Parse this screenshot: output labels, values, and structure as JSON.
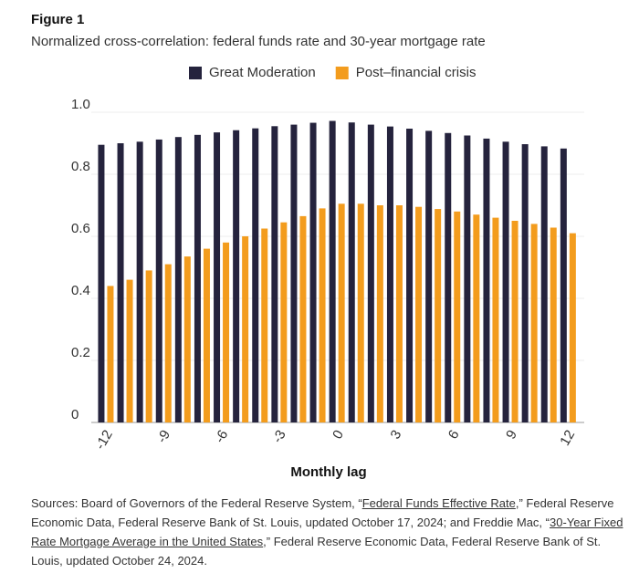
{
  "chart_data": {
    "type": "bar",
    "figure_label": "Figure 1",
    "title": "Normalized cross-correlation: federal funds rate and 30-year mortgage rate",
    "x_label": "Monthly lag",
    "categories": [
      "-12",
      null,
      null,
      "-9",
      null,
      null,
      "-6",
      null,
      null,
      "-3",
      null,
      null,
      "0",
      null,
      null,
      "3",
      null,
      null,
      "6",
      null,
      null,
      "9",
      null,
      null,
      "12"
    ],
    "series": [
      {
        "name": "Great Moderation",
        "color": "#25233d",
        "values": [
          0.895,
          0.9,
          0.905,
          0.912,
          0.92,
          0.927,
          0.935,
          0.942,
          0.948,
          0.955,
          0.96,
          0.966,
          0.972,
          0.967,
          0.96,
          0.954,
          0.947,
          0.94,
          0.933,
          0.925,
          0.915,
          0.905,
          0.897,
          0.89,
          0.883
        ]
      },
      {
        "name": "Post–financial crisis",
        "color": "#f39c1d",
        "values": [
          0.44,
          0.46,
          0.49,
          0.51,
          0.535,
          0.56,
          0.58,
          0.6,
          0.625,
          0.645,
          0.665,
          0.69,
          0.705,
          0.705,
          0.7,
          0.7,
          0.695,
          0.688,
          0.68,
          0.67,
          0.66,
          0.65,
          0.64,
          0.628,
          0.61
        ]
      }
    ],
    "ylim": [
      0,
      1.0
    ],
    "yticks": [
      0,
      0.2,
      0.4,
      0.6,
      0.8,
      {
        "value": 1.0,
        "label": "1.0"
      }
    ],
    "grid": true,
    "legend": "top",
    "sources": [
      {
        "text": "Sources: Board of Governors of the Federal Reserve System, “"
      },
      {
        "text": "Federal Funds Effective Rate",
        "link": true
      },
      {
        "text": ",” Federal Reserve Economic Data, Federal Reserve Bank of St. Louis, updated October 17, 2024; and Freddie Mac, “"
      },
      {
        "text": "30-Year Fixed Rate Mortgage Average in the United States",
        "link": true
      },
      {
        "text": ",” Federal Reserve Economic Data, Federal Reserve Bank of St. Louis, updated October 24, 2024."
      }
    ]
  }
}
